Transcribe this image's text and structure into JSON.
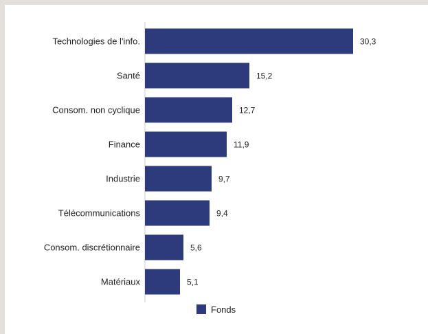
{
  "chart_data": {
    "type": "bar",
    "orientation": "horizontal",
    "categories": [
      "Technologies de l'info.",
      "Santé",
      "Consom. non cyclique",
      "Finance",
      "Industrie",
      "Télécommunications",
      "Consom. discrétionnaire",
      "Matériaux"
    ],
    "series": [
      {
        "name": "Fonds",
        "values": [
          30.3,
          15.2,
          12.7,
          11.9,
          9.7,
          9.4,
          5.6,
          5.1
        ],
        "value_labels": [
          "30,3",
          "15,2",
          "12,7",
          "11,9",
          "9,7",
          "9,4",
          "5,6",
          "5,1"
        ],
        "color": "#2d3a7c"
      }
    ],
    "xlim": [
      0,
      35
    ],
    "grid": false,
    "legend": {
      "position": "bottom-center"
    },
    "colors": {
      "bar": "#2d3a7c",
      "axis": "#cccccc",
      "text": "#222222",
      "background": "#ffffff",
      "frame": "#e3e0db"
    }
  }
}
